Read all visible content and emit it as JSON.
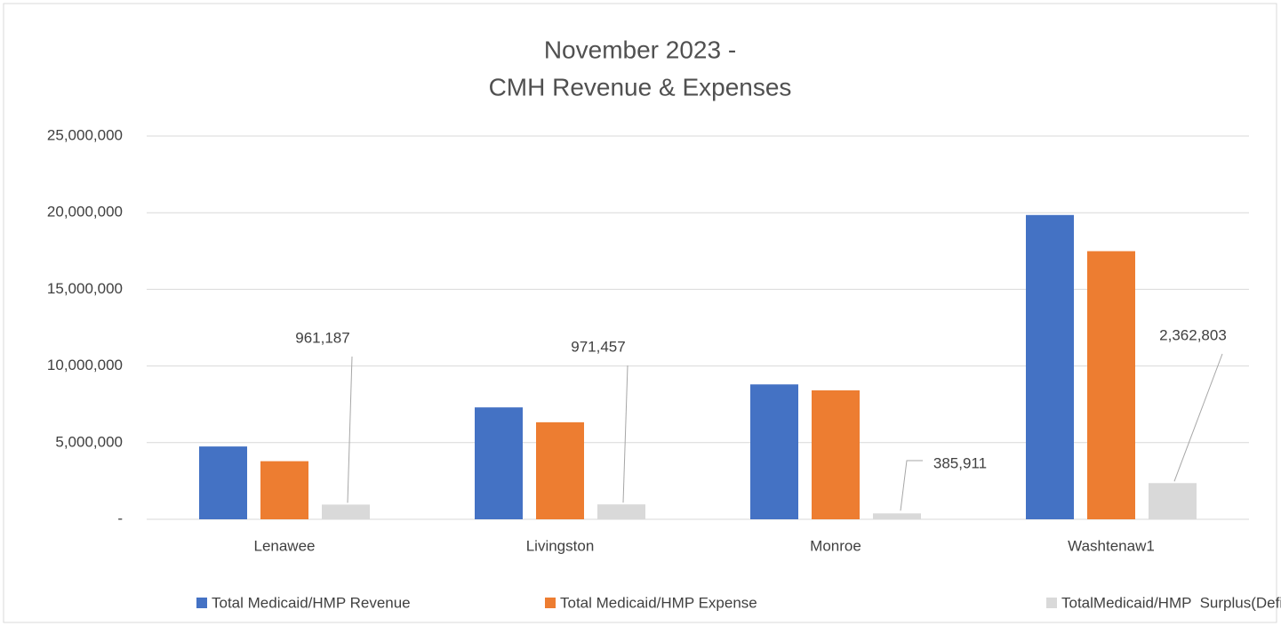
{
  "chart_data": {
    "type": "bar",
    "title": [
      "November 2023 -",
      "CMH Revenue & Expenses"
    ],
    "categories": [
      "Lenawee",
      "Livingston",
      "Monroe",
      "Washtenaw1"
    ],
    "series": [
      {
        "name": "Total Medicaid/HMP Revenue",
        "color": "#4472c4",
        "values": [
          4750000,
          7300000,
          8800000,
          19850000
        ]
      },
      {
        "name": "Total Medicaid/HMP Expense",
        "color": "#ed7d31",
        "values": [
          3790000,
          6330000,
          8410000,
          17490000
        ]
      },
      {
        "name": "TotalMedicaid/HMP  Surplus(Deficit)",
        "color": "#d9d9d9",
        "values": [
          961187,
          971457,
          385911,
          2362803
        ],
        "value_labels": [
          "961,187",
          "971,457",
          "385,911",
          "2,362,803"
        ]
      }
    ],
    "ylim": [
      0,
      25000000
    ],
    "yticks": [
      {
        "value": 0,
        "label": "-"
      },
      {
        "value": 5000000,
        "label": "5,000,000"
      },
      {
        "value": 10000000,
        "label": "10,000,000"
      },
      {
        "value": 15000000,
        "label": "15,000,000"
      },
      {
        "value": 20000000,
        "label": "20,000,000"
      },
      {
        "value": 25000000,
        "label": "25,000,000"
      }
    ],
    "grid": true,
    "legend": "bottom"
  }
}
